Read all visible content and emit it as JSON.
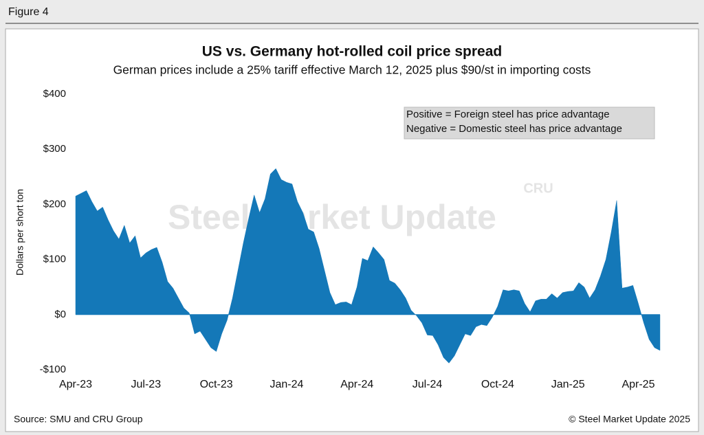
{
  "figure_label": "Figure 4",
  "source": "Source: SMU and CRU Group",
  "copyright": "© Steel Market Update 2025",
  "chart_data": {
    "type": "area",
    "title": "US vs. Germany hot-rolled coil price spread",
    "subtitle": "German prices include a 25% tariff effective March 12, 2025 plus $90/st in importing costs",
    "ylabel": "Dollars per short ton",
    "annotations": [
      "Positive = Foreign steel has price advantage",
      "Negative = Domestic steel has price advantage"
    ],
    "watermark": [
      "Steel Market Update",
      "CRU"
    ],
    "color": "#1478b8",
    "ylim": [
      -100,
      400
    ],
    "yticks": [
      {
        "value": -100,
        "label": "-$100"
      },
      {
        "value": 0,
        "label": "$0"
      },
      {
        "value": 100,
        "label": "$100"
      },
      {
        "value": 200,
        "label": "$200"
      },
      {
        "value": 300,
        "label": "$300"
      },
      {
        "value": 400,
        "label": "$400"
      }
    ],
    "categories": [
      "Apr-23",
      null,
      null,
      null,
      null,
      null,
      null,
      null,
      null,
      null,
      null,
      null,
      null,
      "Jul-23",
      null,
      null,
      null,
      null,
      null,
      null,
      null,
      null,
      null,
      null,
      null,
      null,
      "Oct-23",
      null,
      null,
      null,
      null,
      null,
      null,
      null,
      null,
      null,
      null,
      null,
      null,
      "Jan-24",
      null,
      null,
      null,
      null,
      null,
      null,
      null,
      null,
      null,
      null,
      null,
      null,
      "Apr-24",
      null,
      null,
      null,
      null,
      null,
      null,
      null,
      null,
      null,
      null,
      null,
      null,
      "Jul-24",
      null,
      null,
      null,
      null,
      null,
      null,
      null,
      null,
      null,
      null,
      null,
      null,
      "Oct-24",
      null,
      null,
      null,
      null,
      null,
      null,
      null,
      null,
      null,
      null,
      null,
      null,
      "Jan-25",
      null,
      null,
      null,
      null,
      null,
      null,
      null,
      null,
      null,
      null,
      null,
      null,
      "Apr-25",
      null,
      null,
      null,
      null
    ],
    "values": [
      215,
      220,
      225,
      205,
      188,
      195,
      172,
      152,
      137,
      162,
      130,
      143,
      103,
      112,
      118,
      122,
      95,
      60,
      48,
      30,
      12,
      3,
      -35,
      -30,
      -45,
      -60,
      -67,
      -35,
      -10,
      30,
      80,
      130,
      175,
      217,
      185,
      210,
      255,
      265,
      245,
      240,
      237,
      205,
      185,
      155,
      150,
      120,
      80,
      40,
      18,
      22,
      23,
      18,
      50,
      102,
      98,
      123,
      112,
      100,
      62,
      57,
      45,
      30,
      8,
      -2,
      -15,
      -37,
      -38,
      -55,
      -78,
      -88,
      -75,
      -55,
      -35,
      -38,
      -22,
      -18,
      -20,
      -5,
      15,
      45,
      43,
      45,
      43,
      20,
      5,
      25,
      28,
      28,
      38,
      30,
      40,
      42,
      43,
      58,
      50,
      30,
      45,
      70,
      100,
      150,
      207,
      48,
      50,
      53,
      20,
      -15,
      -45,
      -60,
      -65
    ]
  }
}
